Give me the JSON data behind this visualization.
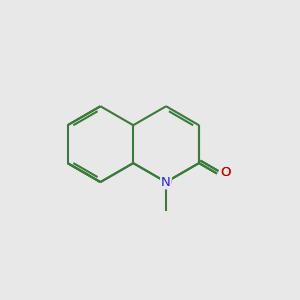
{
  "bg_color": "#e8e8e8",
  "bond_color": "#3a7a3a",
  "bond_width": 1.5,
  "N_color": "#2222ee",
  "O_color": "#cc0000",
  "font_size": 9.5,
  "fig_width": 3.0,
  "fig_height": 3.0,
  "dpi": 100,
  "xlim": [
    -1.0,
    9.0
  ],
  "ylim": [
    -1.0,
    9.0
  ]
}
